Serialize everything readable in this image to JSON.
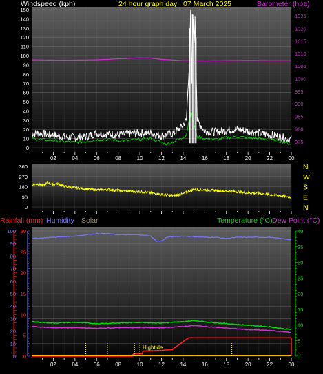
{
  "header": {
    "windspeed_label": "Windspeed (kph)",
    "title": "24 hour graph day : 07 March 2025",
    "barometer_label": "Barometer (hpa)"
  },
  "direction_labels": [
    "N",
    "W",
    "S",
    "E",
    "N"
  ],
  "legend_bottom": {
    "rainfall": "Rainfall (mm)",
    "humidity": "Humidity",
    "solar": "Solar",
    "temperature": "Temperature (°C)",
    "dewpoint": "Dew Point (°C)"
  },
  "annotation": "Hightide",
  "x_ticks": [
    "02",
    "04",
    "06",
    "08",
    "10",
    "12",
    "14",
    "16",
    "18",
    "20",
    "22",
    "00"
  ],
  "colors": {
    "wind_gust": "#ffffff",
    "wind_avg": "#00cc00",
    "barometer": "#cc33cc",
    "direction": "#ffff00",
    "rainfall": "#ff2020",
    "humidity": "#7777ff",
    "solar": "#a09060",
    "temperature": "#00dd00",
    "dewpoint": "#cc33cc",
    "header_title": "#ffff00",
    "axis_text": "#ffffff"
  },
  "chart_data": [
    {
      "type": "line",
      "name": "wind-barometer",
      "x_unit": "hour",
      "y_left": {
        "label": "Windspeed (kph)",
        "ticks": [
          0,
          10,
          20,
          30,
          40,
          50,
          60,
          70,
          80,
          90,
          100,
          110,
          120,
          130,
          140,
          150
        ],
        "range": [
          0,
          150
        ]
      },
      "y_right": {
        "label": "Barometer (hpa)",
        "ticks": [
          975,
          980,
          985,
          990,
          995,
          1000,
          1005,
          1010,
          1015,
          1020,
          1025
        ],
        "range": [
          972.5,
          1027.5
        ]
      },
      "series": [
        {
          "key": "gust",
          "axis": "left",
          "points": [
            [
              0,
              16
            ],
            [
              1,
              15
            ],
            [
              2,
              14
            ],
            [
              3,
              12
            ],
            [
              4,
              11
            ],
            [
              5,
              12
            ],
            [
              6,
              16
            ],
            [
              7,
              15
            ],
            [
              8,
              14
            ],
            [
              9,
              15
            ],
            [
              10,
              16
            ],
            [
              11,
              16
            ],
            [
              12,
              13
            ],
            [
              13,
              15
            ],
            [
              13.8,
              22
            ],
            [
              14.3,
              30
            ],
            [
              14.6,
              100
            ],
            [
              14.7,
              148
            ],
            [
              14.8,
              70
            ],
            [
              14.9,
              145
            ],
            [
              15.0,
              110
            ],
            [
              15.1,
              140
            ],
            [
              15.3,
              30
            ],
            [
              16,
              18
            ],
            [
              17,
              17
            ],
            [
              18,
              19
            ],
            [
              19,
              20
            ],
            [
              20,
              18
            ],
            [
              21,
              16
            ],
            [
              22,
              14
            ],
            [
              23,
              12
            ],
            [
              23.5,
              10
            ],
            [
              24,
              9
            ]
          ]
        },
        {
          "key": "average",
          "axis": "left",
          "points": [
            [
              0,
              10
            ],
            [
              1,
              9
            ],
            [
              2,
              8
            ],
            [
              3,
              7
            ],
            [
              4,
              6
            ],
            [
              5,
              7
            ],
            [
              6,
              9
            ],
            [
              7,
              9
            ],
            [
              8,
              8
            ],
            [
              9,
              8
            ],
            [
              10,
              9
            ],
            [
              11,
              10
            ],
            [
              12,
              6
            ],
            [
              12.5,
              4
            ],
            [
              13,
              6
            ],
            [
              13.8,
              10
            ],
            [
              14.3,
              14
            ],
            [
              14.7,
              40
            ],
            [
              15.0,
              25
            ],
            [
              15.3,
              12
            ],
            [
              16,
              10
            ],
            [
              17,
              9
            ],
            [
              18,
              11
            ],
            [
              19,
              12
            ],
            [
              20,
              11
            ],
            [
              21,
              10
            ],
            [
              22,
              9
            ],
            [
              23,
              7
            ],
            [
              24,
              4
            ]
          ]
        },
        {
          "key": "barometer",
          "axis": "right",
          "points": [
            [
              0,
              1007.5
            ],
            [
              2,
              1007.4
            ],
            [
              4,
              1007.4
            ],
            [
              6,
              1007.5
            ],
            [
              8,
              1007.9
            ],
            [
              10,
              1008.3
            ],
            [
              11,
              1008.2
            ],
            [
              12,
              1007.7
            ],
            [
              14,
              1007.2
            ],
            [
              16,
              1007.1
            ],
            [
              18,
              1007.2
            ],
            [
              20,
              1007.3
            ],
            [
              22,
              1007.2
            ],
            [
              24,
              1007.2
            ]
          ]
        }
      ]
    },
    {
      "type": "line",
      "name": "wind-direction",
      "x_unit": "hour",
      "y_left": {
        "ticks": [
          0,
          90,
          180,
          270,
          360
        ],
        "range": [
          0,
          360
        ]
      },
      "series": [
        {
          "key": "direction",
          "points": [
            [
              0,
              195
            ],
            [
              0.5,
              205
            ],
            [
              1,
              190
            ],
            [
              1.5,
              215
            ],
            [
              2,
              200
            ],
            [
              2.5,
              205
            ],
            [
              3,
              185
            ],
            [
              4,
              170
            ],
            [
              5,
              160
            ],
            [
              6,
              150
            ],
            [
              7,
              155
            ],
            [
              8,
              145
            ],
            [
              9,
              140
            ],
            [
              10,
              135
            ],
            [
              11,
              125
            ],
            [
              12,
              110
            ],
            [
              13,
              100
            ],
            [
              14,
              115
            ],
            [
              14.5,
              140
            ],
            [
              15,
              155
            ],
            [
              16,
              150
            ],
            [
              17,
              145
            ],
            [
              18,
              140
            ],
            [
              19,
              135
            ],
            [
              20,
              125
            ],
            [
              21,
              120
            ],
            [
              22,
              110
            ],
            [
              23,
              100
            ],
            [
              24,
              85
            ]
          ]
        }
      ]
    },
    {
      "type": "line",
      "name": "rain-humidity-temperature",
      "x_unit": "hour",
      "y_left_outer": {
        "label": "Rainfall (mm)",
        "ticks": [
          0,
          5,
          10,
          15,
          20,
          25,
          30
        ],
        "range": [
          0,
          30
        ]
      },
      "y_left_inner": {
        "label": "Humidity",
        "ticks": [
          0,
          10,
          20,
          30,
          40,
          50,
          60,
          70,
          80,
          90,
          100
        ],
        "range": [
          0,
          100
        ]
      },
      "y_right": {
        "label": "Temperature (°C)",
        "ticks": [
          0,
          5,
          10,
          15,
          20,
          25,
          30,
          35,
          40
        ],
        "range": [
          0,
          40
        ]
      },
      "series": [
        {
          "key": "humidity",
          "axis": "inner",
          "points": [
            [
              0,
              94
            ],
            [
              2,
              95
            ],
            [
              4,
              96
            ],
            [
              6,
              98
            ],
            [
              7,
              98
            ],
            [
              8,
              97
            ],
            [
              10,
              97
            ],
            [
              11,
              96
            ],
            [
              11.5,
              92
            ],
            [
              12,
              92
            ],
            [
              12.5,
              95
            ],
            [
              14,
              96
            ],
            [
              16,
              95
            ],
            [
              17,
              95
            ],
            [
              18,
              94
            ],
            [
              19,
              95
            ],
            [
              20,
              95
            ],
            [
              22,
              95
            ],
            [
              23,
              94
            ],
            [
              24,
              93
            ]
          ]
        },
        {
          "key": "temperature",
          "axis": "right",
          "points": [
            [
              0,
              11
            ],
            [
              2,
              10.6
            ],
            [
              4,
              10.8
            ],
            [
              6,
              10.4
            ],
            [
              8,
              10.6
            ],
            [
              10,
              10.8
            ],
            [
              12,
              10.6
            ],
            [
              14,
              11
            ],
            [
              15,
              11.4
            ],
            [
              16,
              11
            ],
            [
              18,
              10.4
            ],
            [
              20,
              9.9
            ],
            [
              22,
              9.4
            ],
            [
              23,
              8.9
            ],
            [
              24,
              8.5
            ]
          ]
        },
        {
          "key": "dewpoint",
          "axis": "right",
          "points": [
            [
              0,
              9.5
            ],
            [
              2,
              9.1
            ],
            [
              4,
              9.1
            ],
            [
              6,
              8.9
            ],
            [
              8,
              9.1
            ],
            [
              10,
              9.2
            ],
            [
              12,
              9.1
            ],
            [
              14,
              9.5
            ],
            [
              15,
              9.8
            ],
            [
              16,
              9.5
            ],
            [
              18,
              9
            ],
            [
              20,
              8.5
            ],
            [
              22,
              8.2
            ],
            [
              23,
              7.9
            ],
            [
              24,
              7.6
            ]
          ]
        },
        {
          "key": "rainfall",
          "axis": "outer",
          "points": [
            [
              0,
              0
            ],
            [
              9.3,
              0
            ],
            [
              9.4,
              0.6
            ],
            [
              10.2,
              0.6
            ],
            [
              10.3,
              1.2
            ],
            [
              11.0,
              1.3
            ],
            [
              12.0,
              1.4
            ],
            [
              13.0,
              1.6
            ],
            [
              14.0,
              3.5
            ],
            [
              14.5,
              4.4
            ],
            [
              15,
              4.4
            ],
            [
              18,
              4.4
            ],
            [
              20,
              4.4
            ],
            [
              22,
              4.4
            ],
            [
              24,
              4.4
            ]
          ]
        },
        {
          "key": "solar",
          "axis": "inner",
          "points": [
            [
              0,
              0
            ],
            [
              24,
              0
            ]
          ]
        }
      ],
      "markers": [
        5,
        7,
        9.5,
        10,
        18.5
      ]
    }
  ]
}
